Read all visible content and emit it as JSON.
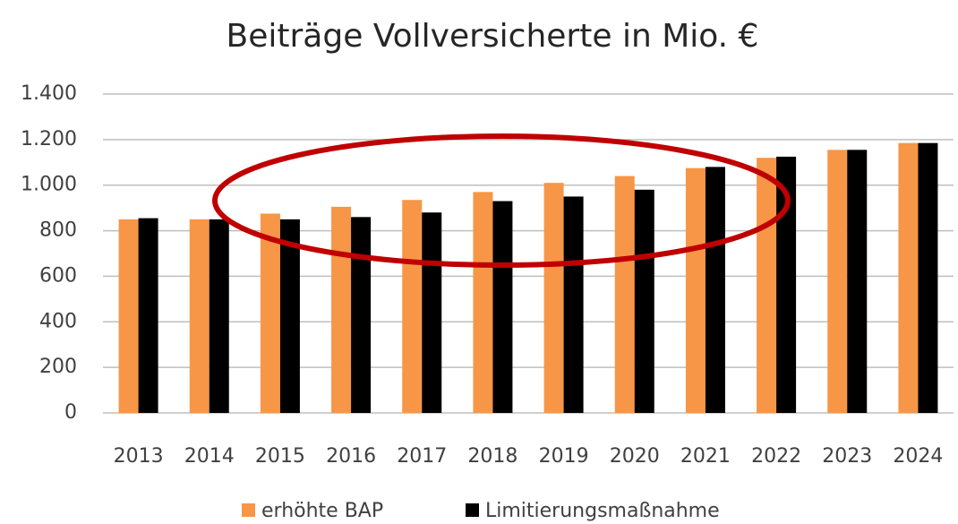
{
  "chart_data": {
    "type": "bar",
    "title": "Beiträge Vollversicherte in Mio. €",
    "categories": [
      "2013",
      "2014",
      "2015",
      "2016",
      "2017",
      "2018",
      "2019",
      "2020",
      "2021",
      "2022",
      "2023",
      "2024"
    ],
    "series": [
      {
        "name": "erhöhte BAP",
        "color": "#f79646",
        "values": [
          850,
          850,
          875,
          905,
          935,
          970,
          1010,
          1040,
          1075,
          1120,
          1155,
          1185
        ]
      },
      {
        "name": "Limitierungsmaßnahme",
        "color": "#000000",
        "values": [
          855,
          850,
          850,
          860,
          880,
          930,
          950,
          980,
          1080,
          1125,
          1155,
          1185
        ]
      }
    ],
    "ylim": [
      0,
      1400
    ],
    "yticks": [
      0,
      200,
      400,
      600,
      800,
      {
        "value": 1000,
        "label": "1.000"
      },
      {
        "value": 1200,
        "label": "1.200"
      },
      {
        "value": 1400,
        "label": "1.400"
      }
    ],
    "grid": true,
    "legend": "bottom"
  }
}
